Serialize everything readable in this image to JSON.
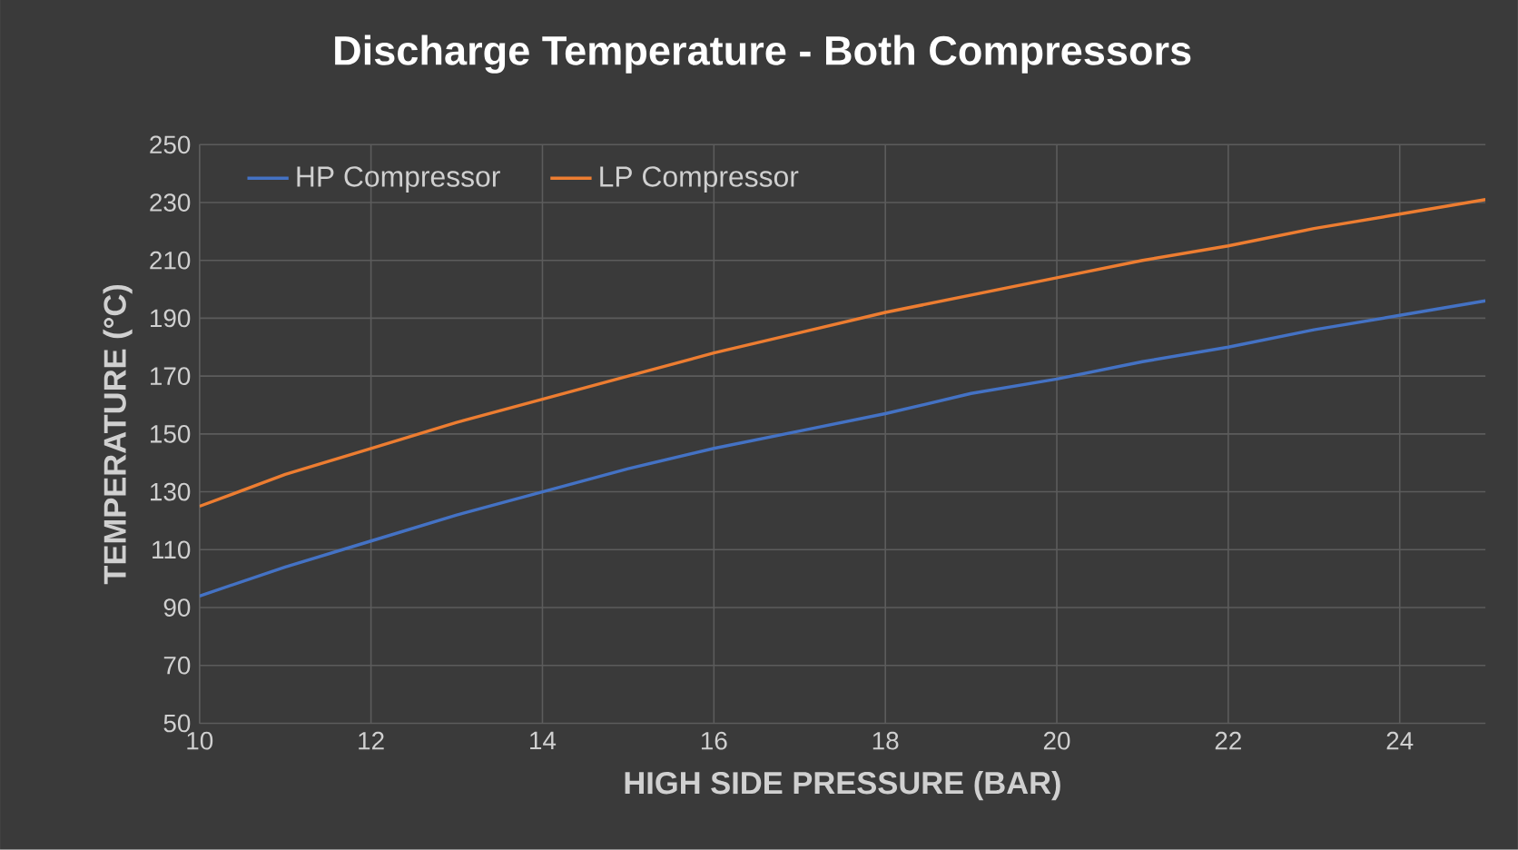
{
  "chart_data": {
    "type": "line",
    "title": "Discharge Temperature - Both Compressors",
    "xlabel": "HIGH SIDE PRESSURE (BAR)",
    "ylabel": "TEMPERATURE (°C)",
    "x": [
      10,
      11,
      12,
      13,
      14,
      15,
      16,
      17,
      18,
      19,
      20,
      21,
      22,
      23,
      24,
      25
    ],
    "series": [
      {
        "name": "HP Compressor",
        "color": "#4472c4",
        "values": [
          94,
          104,
          113,
          122,
          130,
          138,
          145,
          151,
          157,
          164,
          169,
          175,
          180,
          186,
          191,
          196
        ]
      },
      {
        "name": "LP Compressor",
        "color": "#ed7d31",
        "values": [
          125,
          136,
          145,
          154,
          162,
          170,
          178,
          185,
          192,
          198,
          204,
          210,
          215,
          221,
          226,
          231
        ]
      }
    ],
    "xlim": [
      10,
      25
    ],
    "xticks": [
      10,
      12,
      14,
      16,
      18,
      20,
      22,
      24
    ],
    "ylim": [
      50,
      250
    ],
    "yticks": [
      50,
      70,
      90,
      110,
      130,
      150,
      170,
      190,
      210,
      230,
      250
    ],
    "grid": true,
    "legend": "top left"
  }
}
